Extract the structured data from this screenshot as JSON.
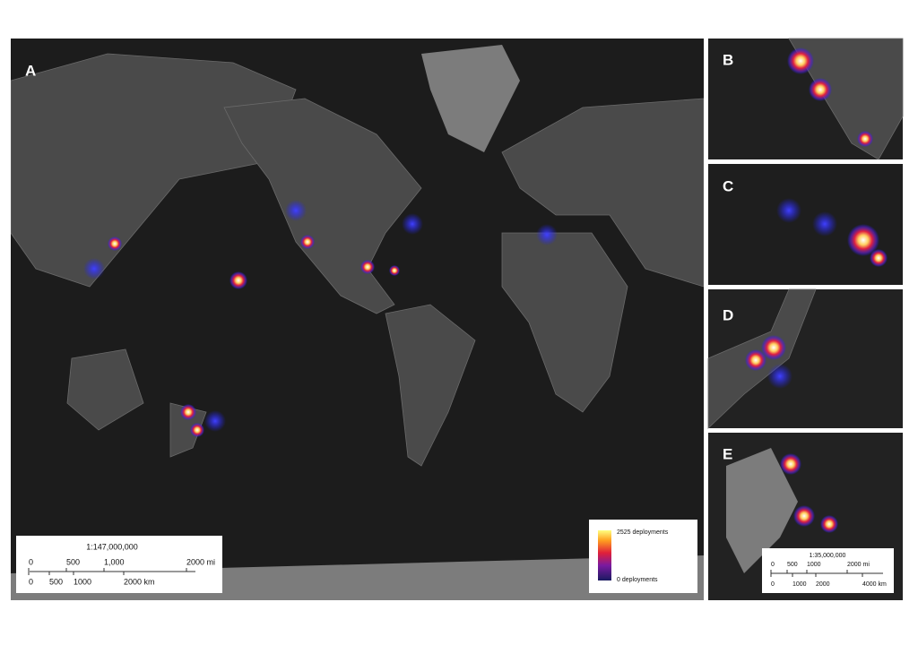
{
  "panels": [
    {
      "label": "A"
    },
    {
      "label": "B"
    },
    {
      "label": "C"
    },
    {
      "label": "D"
    },
    {
      "label": "E"
    }
  ],
  "main_scale": {
    "ratio": "1:147,000,000",
    "miles": [
      "0",
      "500",
      "1,000",
      "2000 mi"
    ],
    "km": [
      "0",
      "500",
      "1000",
      "2000 km"
    ]
  },
  "legend": {
    "max": "2525 deployments",
    "min": "0 deployments"
  },
  "inset_scale": {
    "ratio": "1:35,000,000",
    "miles": [
      "0",
      "500",
      "1000",
      "2000 mi"
    ],
    "km": [
      "0",
      "1000",
      "2000",
      "4000 km"
    ]
  }
}
